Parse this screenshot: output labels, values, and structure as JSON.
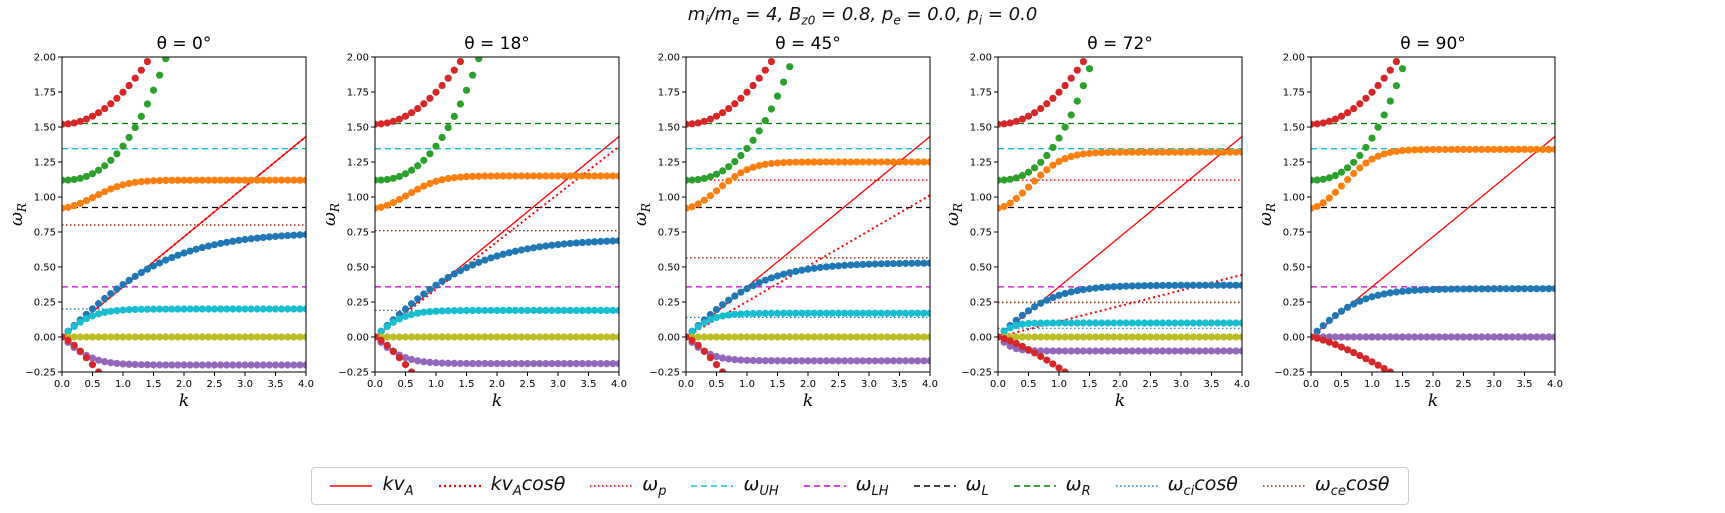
{
  "figure": {
    "suptitle": "mi/me = 4, Bz0 = 0.8, pe = 0.0, pi = 0.0"
  },
  "chart_data": [
    {
      "type": "scatter",
      "title": "θ = 0°",
      "xlabel": "k",
      "ylabel": "ωR",
      "xlim": [
        0,
        4
      ],
      "ylim": [
        -0.25,
        2.0
      ],
      "xticks": [
        "0.0",
        "0.5",
        "1.0",
        "1.5",
        "2.0",
        "2.5",
        "3.0",
        "3.5",
        "4.0"
      ],
      "yticks": [
        "−0.25",
        "0.00",
        "0.25",
        "0.50",
        "0.75",
        "1.00",
        "1.25",
        "1.50",
        "1.75",
        "2.00"
      ],
      "grid": false,
      "theta_deg": 0,
      "reference_lines": {
        "kvA_slope": 0.358,
        "kvAcos_slope": 0.358,
        "omega_p": 0.8,
        "omega_UH": 1.345,
        "omega_LH": 0.358,
        "omega_L": 0.925,
        "omega_R": 1.525,
        "omega_ci_cos": 0.2,
        "omega_ce_cos": 0.8
      },
      "series": [
        {
          "color": "#d62728",
          "points": "upper branch rising from 1.52 at k=0 to 2.0 near k=1.45; second branch falling from 0 at k=0 to -0.25 near k=0.6"
        },
        {
          "color": "#2ca02c",
          "start": 1.12,
          "rises_to_2_at_k": 1.75
        },
        {
          "color": "#ff7f0e",
          "start": 0.92,
          "plateau": 1.12
        },
        {
          "color": "#1f77b4",
          "plateau": 0.75
        },
        {
          "color": "#17becf",
          "plateau": 0.2
        },
        {
          "color": "#bcbd22",
          "plateau": 0.0
        },
        {
          "color": "#9467bd",
          "plateau": -0.2
        }
      ]
    },
    {
      "type": "scatter",
      "title": "θ = 18°",
      "xlabel": "k",
      "ylabel": "ωR",
      "xlim": [
        0,
        4
      ],
      "ylim": [
        -0.25,
        2.0
      ],
      "xticks": [
        "0.0",
        "0.5",
        "1.0",
        "1.5",
        "2.0",
        "2.5",
        "3.0",
        "3.5",
        "4.0"
      ],
      "yticks": [
        "−0.25",
        "0.00",
        "0.25",
        "0.50",
        "0.75",
        "1.00",
        "1.25",
        "1.50",
        "1.75",
        "2.00"
      ],
      "grid": false,
      "theta_deg": 18,
      "reference_lines": {
        "kvA_slope": 0.358,
        "kvAcos_slope": 0.34,
        "omega_p": 0.76,
        "omega_UH": 1.345,
        "omega_LH": 0.358,
        "omega_L": 0.925,
        "omega_R": 1.525,
        "omega_ci_cos": 0.19,
        "omega_ce_cos": 0.76
      },
      "series": [
        {
          "color": "#d62728",
          "points": "upper branch rising from 1.52 at k=0 to 2.0 near k=1.45; second branch falling from 0 at k=0 to -0.25 near k=0.6"
        },
        {
          "color": "#2ca02c",
          "start": 1.12,
          "rises_to_2_at_k": 1.75
        },
        {
          "color": "#ff7f0e",
          "start": 0.92,
          "plateau": 1.15
        },
        {
          "color": "#1f77b4",
          "plateau": 0.7
        },
        {
          "color": "#17becf",
          "plateau": 0.19
        },
        {
          "color": "#bcbd22",
          "plateau": 0.0
        },
        {
          "color": "#9467bd",
          "plateau": -0.19
        }
      ]
    },
    {
      "type": "scatter",
      "title": "θ = 45°",
      "xlabel": "k",
      "ylabel": "ωR",
      "xlim": [
        0,
        4
      ],
      "ylim": [
        -0.25,
        2.0
      ],
      "xticks": [
        "0.0",
        "0.5",
        "1.0",
        "1.5",
        "2.0",
        "2.5",
        "3.0",
        "3.5",
        "4.0"
      ],
      "yticks": [
        "−0.25",
        "0.00",
        "0.25",
        "0.50",
        "0.75",
        "1.00",
        "1.25",
        "1.50",
        "1.75",
        "2.00"
      ],
      "grid": false,
      "theta_deg": 45,
      "reference_lines": {
        "kvA_slope": 0.358,
        "kvAcos_slope": 0.253,
        "omega_p": 0.565,
        "omega_p_upper": 1.12,
        "omega_UH": 1.345,
        "omega_LH": 0.358,
        "omega_L": 0.925,
        "omega_R": 1.525,
        "omega_ci_cos": 0.14,
        "omega_ce_cos": 0.565
      },
      "series": [
        {
          "color": "#d62728",
          "points": "upper branch rising from 1.52 at k=0 to 2.0 near k=1.55; second branch falling from 0 at k=0 to -0.25 near k=0.6"
        },
        {
          "color": "#2ca02c",
          "start": 1.12,
          "rises_to_2_at_k": 1.8
        },
        {
          "color": "#ff7f0e",
          "start": 0.92,
          "plateau": 1.25
        },
        {
          "color": "#1f77b4",
          "plateau": 0.53
        },
        {
          "color": "#17becf",
          "plateau": 0.17
        },
        {
          "color": "#bcbd22",
          "plateau": 0.0
        },
        {
          "color": "#9467bd",
          "plateau": -0.17
        }
      ]
    },
    {
      "type": "scatter",
      "title": "θ = 72°",
      "xlabel": "k",
      "ylabel": "ωR",
      "xlim": [
        0,
        4
      ],
      "ylim": [
        -0.25,
        2.0
      ],
      "xticks": [
        "0.0",
        "0.5",
        "1.0",
        "1.5",
        "2.0",
        "2.5",
        "3.0",
        "3.5",
        "4.0"
      ],
      "yticks": [
        "−0.25",
        "0.00",
        "0.25",
        "0.50",
        "0.75",
        "1.00",
        "1.25",
        "1.50",
        "1.75",
        "2.00"
      ],
      "grid": false,
      "theta_deg": 72,
      "reference_lines": {
        "kvA_slope": 0.358,
        "kvAcos_slope": 0.111,
        "omega_p": 0.247,
        "omega_p_upper": 1.12,
        "omega_UH": 1.345,
        "omega_LH": 0.358,
        "omega_L": 0.925,
        "omega_R": 1.525,
        "omega_ci_cos": 0.062,
        "omega_ce_cos": 0.247
      },
      "series": [
        {
          "color": "#d62728",
          "points": "upper branch rising from 1.52 at k=0 to 1.95 near k=1.4; second branch falling from 0 at k=0 to -0.25 near k=1.1"
        },
        {
          "color": "#2ca02c",
          "start": 1.12,
          "rises_to_2_at_k": 1.6
        },
        {
          "color": "#ff7f0e",
          "start": 0.92,
          "plateau": 1.32
        },
        {
          "color": "#1f77b4",
          "plateau": 0.37
        },
        {
          "color": "#17becf",
          "plateau": 0.1
        },
        {
          "color": "#bcbd22",
          "plateau": 0.0
        },
        {
          "color": "#9467bd",
          "plateau": -0.1
        }
      ]
    },
    {
      "type": "scatter",
      "title": "θ = 90°",
      "xlabel": "k",
      "ylabel": "ωR",
      "xlim": [
        0,
        4
      ],
      "ylim": [
        -0.25,
        2.0
      ],
      "xticks": [
        "0.0",
        "0.5",
        "1.0",
        "1.5",
        "2.0",
        "2.5",
        "3.0",
        "3.5",
        "4.0"
      ],
      "yticks": [
        "−0.25",
        "0.00",
        "0.25",
        "0.50",
        "0.75",
        "1.00",
        "1.25",
        "1.50",
        "1.75",
        "2.00"
      ],
      "grid": false,
      "theta_deg": 90,
      "reference_lines": {
        "kvA_slope": 0.358,
        "kvAcos_slope": 0.0,
        "omega_p": 0.0,
        "omega_UH": 1.345,
        "omega_LH": 0.358,
        "omega_L": 0.925,
        "omega_R": 1.525,
        "omega_ci_cos": 0.0,
        "omega_ce_cos": 0.0
      },
      "series": [
        {
          "color": "#d62728",
          "points": "upper branch rising from 1.52 at k=0 to 1.95 near k=1.4; second branch falling from 0 at k=0 to -0.25 near k=1.3"
        },
        {
          "color": "#2ca02c",
          "start": 1.12,
          "rises_to_2_at_k": 1.6
        },
        {
          "color": "#ff7f0e",
          "start": 0.92,
          "plateau": 1.34
        },
        {
          "color": "#1f77b4",
          "plateau": 0.345
        },
        {
          "color": "#17becf",
          "plateau": 0.0
        },
        {
          "color": "#bcbd22",
          "plateau": 0.0
        },
        {
          "color": "#9467bd",
          "plateau": 0.0
        }
      ]
    }
  ],
  "legend": {
    "placement": "bottom-center",
    "items": [
      {
        "label": "kvA",
        "color": "#ff0000",
        "dash": "solid"
      },
      {
        "label": "kvAcosθ",
        "color": "#ff0000",
        "dash": "dotted-heavy"
      },
      {
        "label": "ωp",
        "color": "#ff0000",
        "dash": "dotted"
      },
      {
        "label": "ωUH",
        "color": "#17becf",
        "dash": "dashed"
      },
      {
        "label": "ωLH",
        "color": "#cc00cc",
        "dash": "dashed"
      },
      {
        "label": "ωL",
        "color": "#000000",
        "dash": "dashed"
      },
      {
        "label": "ωR",
        "color": "#008000",
        "dash": "dashed"
      },
      {
        "label": "ωcicosθ",
        "color": "#1f77b4",
        "dash": "dotted"
      },
      {
        "label": "ωcecosθ",
        "color": "#8c2a0a",
        "dash": "dotted"
      }
    ]
  },
  "colors": {
    "red": "#d62728",
    "green": "#2ca02c",
    "orange": "#ff7f0e",
    "blue": "#1f77b4",
    "cyan": "#17becf",
    "olive": "#bcbd22",
    "purple": "#9467bd"
  }
}
